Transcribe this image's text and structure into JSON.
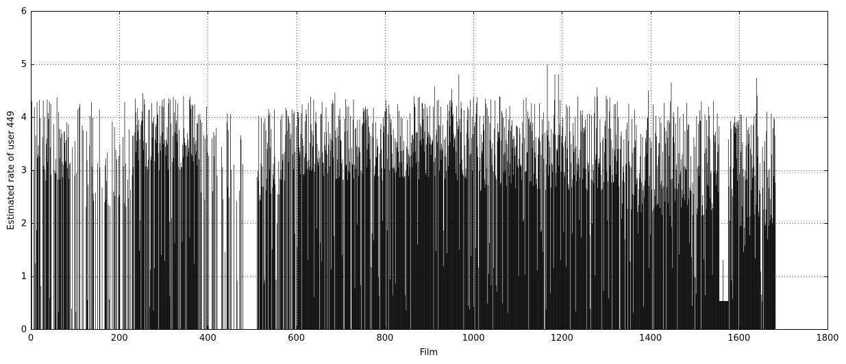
{
  "chart_data": {
    "type": "bar",
    "title": "",
    "xlabel": "Film",
    "ylabel": "Estimated rate of user 449",
    "xlim": [
      0,
      1800
    ],
    "ylim": [
      0,
      6
    ],
    "x_ticks": [
      0,
      200,
      400,
      600,
      800,
      1000,
      1200,
      1400,
      1600,
      1800
    ],
    "y_ticks": [
      0,
      1,
      2,
      3,
      4,
      5,
      6
    ],
    "grid": true,
    "n_films": 1682,
    "color": "#000000",
    "value_segments": [
      {
        "from": 1,
        "to": 85,
        "base": 3.6,
        "spread": 0.8,
        "missing": 0.3
      },
      {
        "from": 86,
        "to": 230,
        "base": 3.3,
        "spread": 1.0,
        "missing": 0.55
      },
      {
        "from": 231,
        "to": 380,
        "base": 3.7,
        "spread": 0.7,
        "missing": 0.15
      },
      {
        "from": 381,
        "to": 480,
        "base": 3.4,
        "spread": 1.0,
        "missing": 0.55
      },
      {
        "from": 481,
        "to": 510,
        "base": 0,
        "spread": 0,
        "missing": 0.95
      },
      {
        "from": 511,
        "to": 600,
        "base": 3.3,
        "spread": 0.9,
        "missing": 0.25
      },
      {
        "from": 601,
        "to": 1000,
        "base": 3.6,
        "spread": 0.8,
        "missing": 0.05
      },
      {
        "from": 1001,
        "to": 1330,
        "base": 3.5,
        "spread": 0.9,
        "missing": 0.03
      },
      {
        "from": 1331,
        "to": 1555,
        "base": 3.2,
        "spread": 1.1,
        "missing": 0.03
      },
      {
        "from": 1556,
        "to": 1575,
        "base": 0.53,
        "spread": 0,
        "missing": 0.0
      },
      {
        "from": 1576,
        "to": 1682,
        "base": 3.0,
        "spread": 1.1,
        "missing": 0.05
      }
    ],
    "peaks": [
      [
        1167,
        4.99
      ],
      [
        1184,
        4.8
      ],
      [
        1192,
        4.8
      ],
      [
        967,
        4.8
      ],
      [
        1640,
        4.73
      ],
      [
        1447,
        4.65
      ],
      [
        912,
        4.58
      ],
      [
        1279,
        4.56
      ],
      [
        951,
        4.53
      ],
      [
        1395,
        4.5
      ],
      [
        687,
        4.46
      ],
      [
        253,
        4.45
      ],
      [
        1641,
        4.4
      ]
    ]
  }
}
